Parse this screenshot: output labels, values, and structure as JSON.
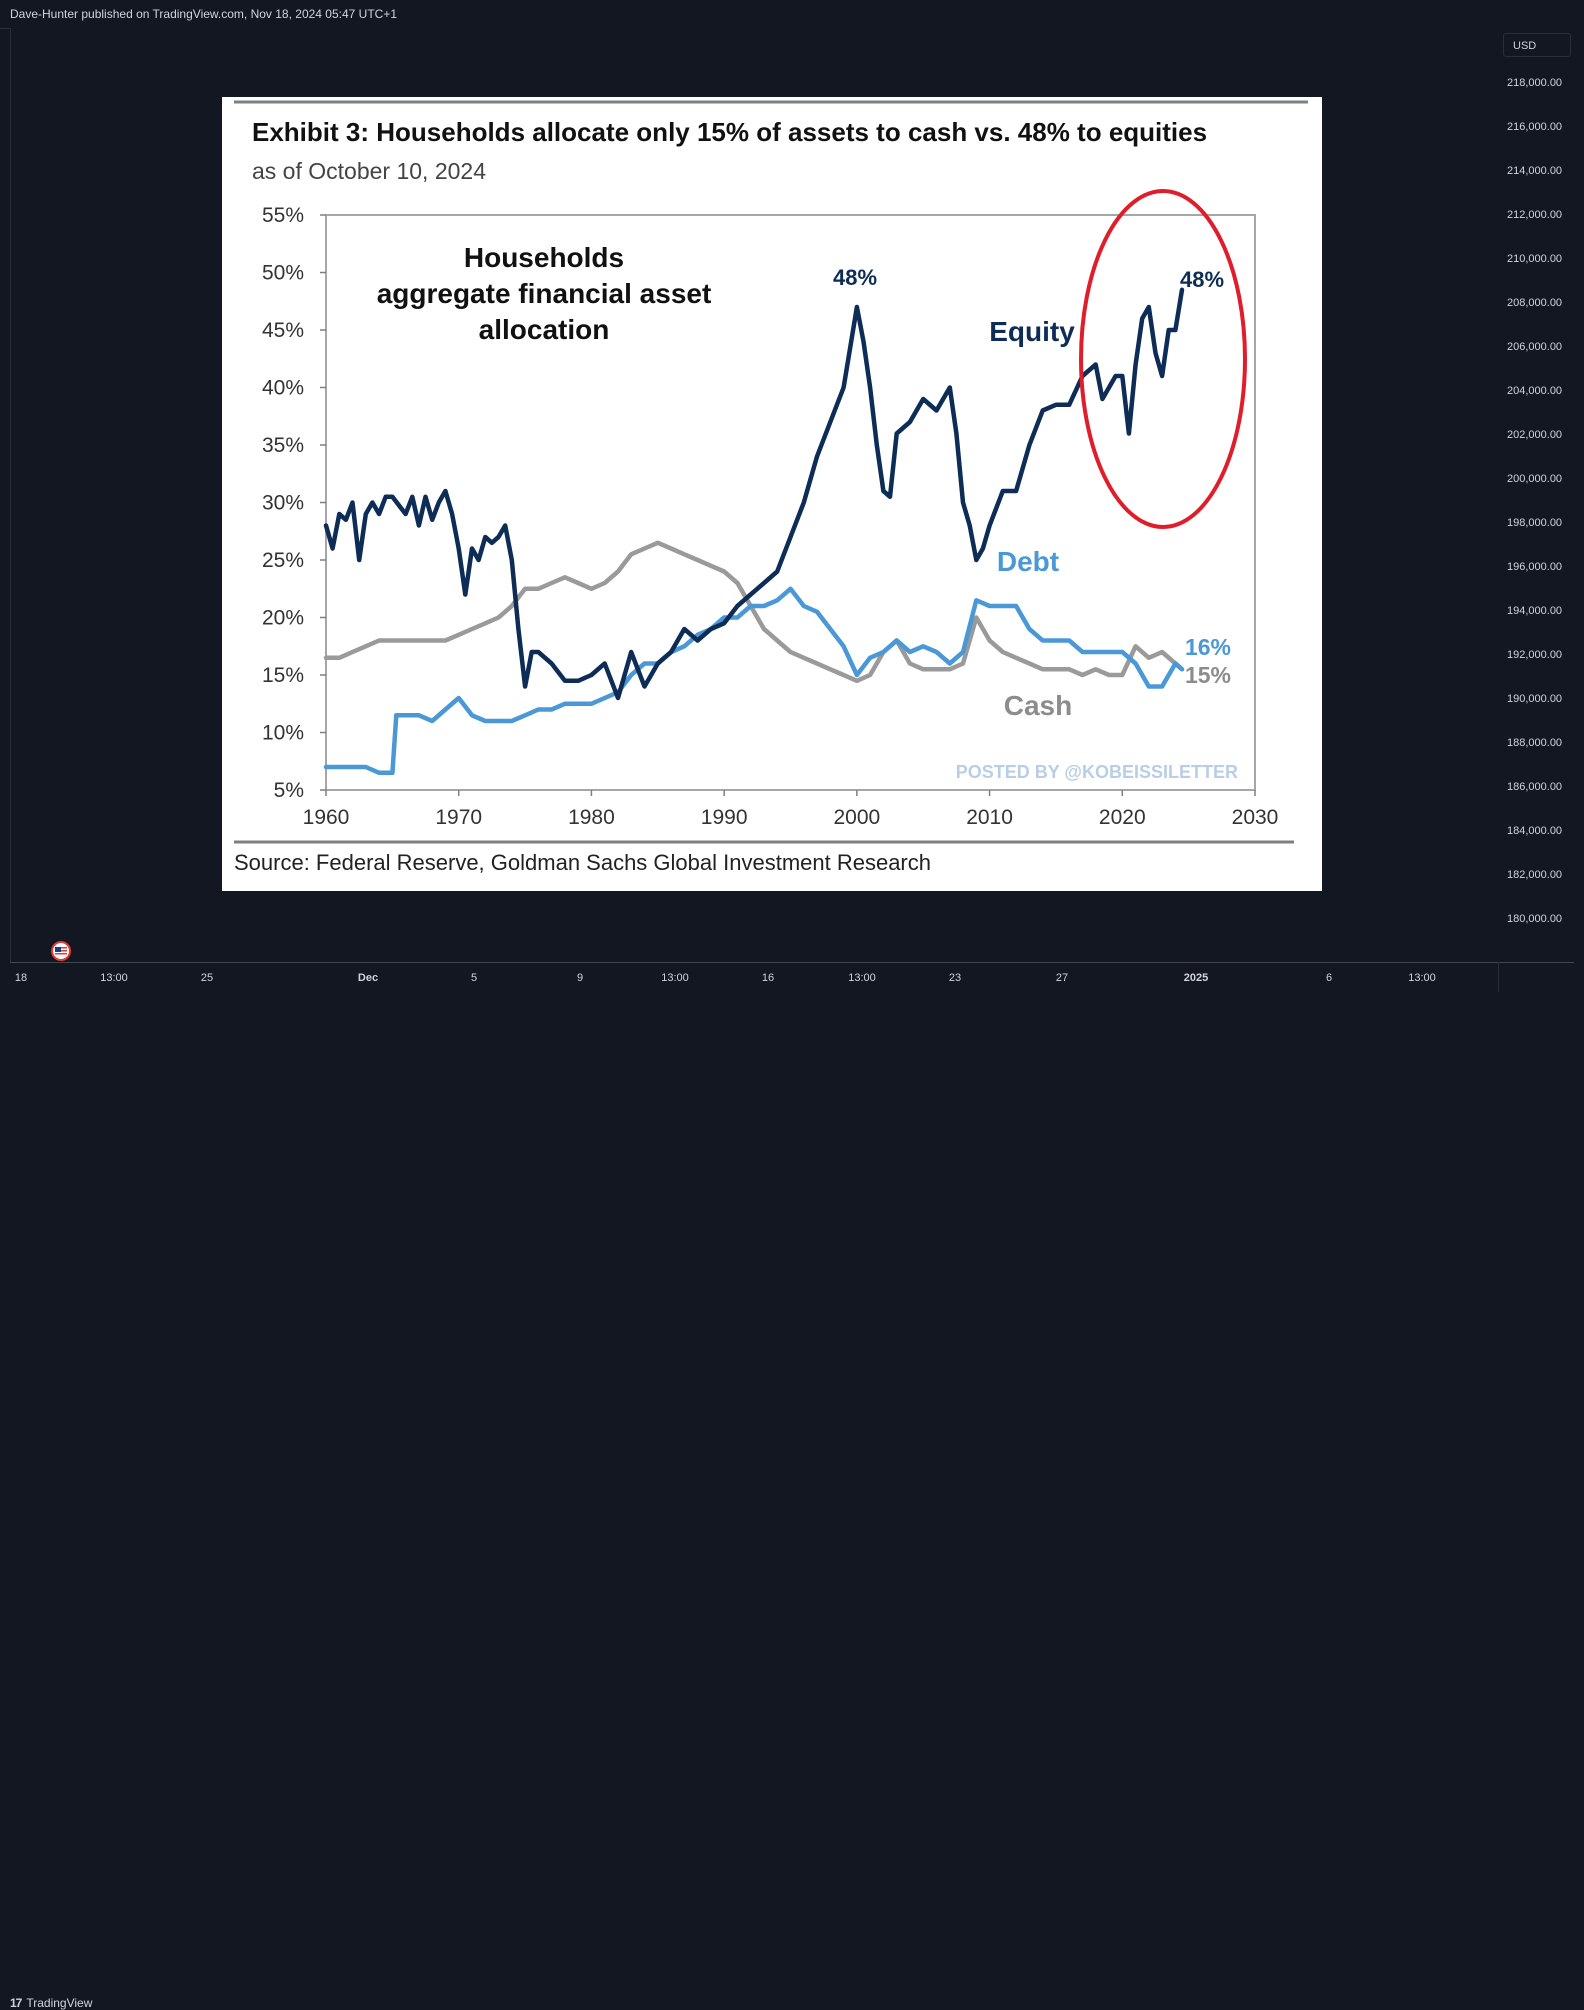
{
  "header": {
    "publish_info": "Dave-Hunter published on TradingView.com, Nov 18, 2024 05:47 UTC+1"
  },
  "price_scale": {
    "currency": "USD",
    "labels": [
      "218,000.00",
      "216,000.00",
      "214,000.00",
      "212,000.00",
      "210,000.00",
      "208,000.00",
      "206,000.00",
      "204,000.00",
      "202,000.00",
      "200,000.00",
      "198,000.00",
      "196,000.00",
      "194,000.00",
      "192,000.00",
      "190,000.00",
      "188,000.00",
      "186,000.00",
      "184,000.00",
      "182,000.00",
      "180,000.00"
    ]
  },
  "time_axis": {
    "labels": [
      "18",
      "13:00",
      "25",
      "Dec",
      "5",
      "9",
      "13:00",
      "16",
      "13:00",
      "23",
      "27",
      "2025",
      "6",
      "13:00"
    ]
  },
  "footer": {
    "brand": "TradingView",
    "brand_mark": "17"
  },
  "chart_data": {
    "type": "line",
    "title": "Exhibit 3: Households allocate only 15% of assets to cash vs. 48% to equities",
    "subtitle": "as of October 10, 2024",
    "inner_title": "Households aggregate financial asset allocation",
    "inner_title_lines": [
      "Households",
      "aggregate financial asset",
      "allocation"
    ],
    "xlabel": "",
    "ylabel": "",
    "xlim": [
      1960,
      2030
    ],
    "ylim": [
      5,
      55
    ],
    "x_ticks": [
      1960,
      1970,
      1980,
      1990,
      2000,
      2010,
      2020,
      2030
    ],
    "y_ticks": [
      "55%",
      "50%",
      "45%",
      "40%",
      "35%",
      "30%",
      "25%",
      "20%",
      "15%",
      "10%",
      "5%"
    ],
    "y_tick_values": [
      55,
      50,
      45,
      40,
      35,
      30,
      25,
      20,
      15,
      10,
      5
    ],
    "series": [
      {
        "name": "Equity",
        "color": "#0d2d56",
        "x": [
          1960,
          1960.5,
          1961,
          1961.5,
          1962,
          1962.5,
          1963,
          1963.5,
          1964,
          1964.5,
          1965,
          1966,
          1966.5,
          1967,
          1967.5,
          1968,
          1968.5,
          1969,
          1969.5,
          1970,
          1970.5,
          1971,
          1971.5,
          1972,
          1972.5,
          1973,
          1973.5,
          1974,
          1974.5,
          1975,
          1975.5,
          1976,
          1977,
          1978,
          1979,
          1980,
          1981,
          1982,
          1983,
          1984,
          1985,
          1986,
          1987,
          1988,
          1989,
          1990,
          1991,
          1992,
          1993,
          1994,
          1995,
          1996,
          1997,
          1998,
          1999,
          2000,
          2000.5,
          2001,
          2001.5,
          2002,
          2002.5,
          2003,
          2004,
          2005,
          2006,
          2007,
          2007.5,
          2008,
          2008.5,
          2009,
          2009.5,
          2010,
          2011,
          2012,
          2013,
          2014,
          2015,
          2016,
          2017,
          2018,
          2018.5,
          2019,
          2019.5,
          2020,
          2020.5,
          2021,
          2021.5,
          2022,
          2022.5,
          2023,
          2023.5,
          2024,
          2024.5
        ],
        "values": [
          28,
          26,
          29,
          28.5,
          30,
          25,
          29,
          30,
          29,
          30.5,
          30.5,
          29,
          30.5,
          28,
          30.5,
          28.5,
          30,
          31,
          29,
          26,
          22,
          26,
          25,
          27,
          26.5,
          27,
          28,
          25,
          19,
          14,
          17,
          17,
          16,
          14.5,
          14.5,
          15,
          16,
          13,
          17,
          14,
          16,
          17,
          19,
          18,
          19,
          19.5,
          21,
          22,
          23,
          24,
          27,
          30,
          34,
          37,
          40,
          47,
          44,
          40,
          35,
          31,
          30.5,
          36,
          37,
          39,
          38,
          40,
          36,
          30,
          28,
          25,
          26,
          28,
          31,
          31,
          35,
          38,
          38.5,
          38.5,
          41,
          42,
          39,
          40,
          41,
          41,
          36,
          42,
          46,
          47,
          43,
          41,
          45,
          45,
          48.5
        ]
      },
      {
        "name": "Debt",
        "color": "#4a98d6",
        "x": [
          1960,
          1961,
          1962,
          1963,
          1964,
          1965,
          1965.3,
          1966,
          1967,
          1968,
          1969,
          1970,
          1971,
          1972,
          1973,
          1974,
          1975,
          1976,
          1977,
          1978,
          1979,
          1980,
          1981,
          1982,
          1983,
          1984,
          1985,
          1986,
          1987,
          1988,
          1989,
          1990,
          1991,
          1992,
          1993,
          1994,
          1995,
          1996,
          1997,
          1998,
          1999,
          2000,
          2001,
          2002,
          2003,
          2004,
          2005,
          2006,
          2007,
          2008,
          2009,
          2010,
          2011,
          2012,
          2013,
          2014,
          2015,
          2016,
          2017,
          2018,
          2019,
          2020,
          2021,
          2022,
          2023,
          2024,
          2024.5
        ],
        "values": [
          7,
          7,
          7,
          7,
          6.5,
          6.5,
          11.5,
          11.5,
          11.5,
          11,
          12,
          13,
          11.5,
          11,
          11,
          11,
          11.5,
          12,
          12,
          12.5,
          12.5,
          12.5,
          13,
          13.5,
          15,
          16,
          16,
          17,
          17.5,
          18.5,
          19,
          20,
          20,
          21,
          21,
          21.5,
          22.5,
          21,
          20.5,
          19,
          17.5,
          15,
          16.5,
          17,
          18,
          17,
          17.5,
          17,
          16,
          17,
          21.5,
          21,
          21,
          21,
          19,
          18,
          18,
          18,
          17,
          17,
          17,
          17,
          16,
          14,
          14,
          16,
          15.5
        ]
      },
      {
        "name": "Cash",
        "color": "#9a9a9a",
        "x": [
          1960,
          1961,
          1962,
          1963,
          1964,
          1965,
          1966,
          1967,
          1968,
          1969,
          1970,
          1971,
          1972,
          1973,
          1974,
          1975,
          1976,
          1977,
          1978,
          1979,
          1980,
          1981,
          1982,
          1983,
          1984,
          1985,
          1986,
          1987,
          1988,
          1989,
          1990,
          1991,
          1992,
          1993,
          1994,
          1995,
          1996,
          1997,
          1998,
          1999,
          2000,
          2001,
          2002,
          2003,
          2004,
          2005,
          2006,
          2007,
          2008,
          2009,
          2010,
          2011,
          2012,
          2013,
          2014,
          2015,
          2016,
          2017,
          2018,
          2019,
          2020,
          2021,
          2022,
          2023,
          2024,
          2024.5
        ],
        "values": [
          16.5,
          16.5,
          17,
          17.5,
          18,
          18,
          18,
          18,
          18,
          18,
          18.5,
          19,
          19.5,
          20,
          21,
          22.5,
          22.5,
          23,
          23.5,
          23,
          22.5,
          23,
          24,
          25.5,
          26,
          26.5,
          26,
          25.5,
          25,
          24.5,
          24,
          23,
          21,
          19,
          18,
          17,
          16.5,
          16,
          15.5,
          15,
          14.5,
          15,
          17,
          18,
          16,
          15.5,
          15.5,
          15.5,
          16,
          20,
          18,
          17,
          16.5,
          16,
          15.5,
          15.5,
          15.5,
          15,
          15.5,
          15,
          15,
          17.5,
          16.5,
          17,
          16,
          15.5
        ]
      }
    ],
    "annotations": {
      "equity_peak_2000": "48%",
      "equity_latest": "48%",
      "debt_latest": "16%",
      "cash_latest": "15%",
      "equity_label": "Equity",
      "debt_label": "Debt",
      "cash_label": "Cash"
    },
    "highlight": "red ellipse around 2018–2024 equity values",
    "watermark": "POSTED BY @KOBEISSILETTER",
    "source": "Source: Federal Reserve, Goldman Sachs Global Investment Research"
  }
}
